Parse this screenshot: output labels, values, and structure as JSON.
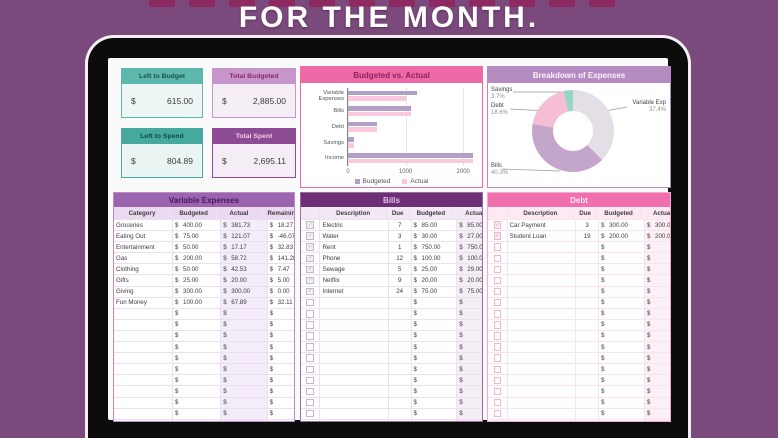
{
  "page": {
    "title": "FOR THE MONTH."
  },
  "summary_cards": [
    {
      "label": "Left to Budget",
      "currency": "$",
      "value": "615.00"
    },
    {
      "label": "Total Budgeted",
      "currency": "$",
      "value": "2,885.00"
    },
    {
      "label": "Left to Spend",
      "currency": "$",
      "value": "804.89"
    },
    {
      "label": "Total Spent",
      "currency": "$",
      "value": "2,695.11"
    }
  ],
  "chart_data": [
    {
      "type": "bar",
      "orientation": "horizontal",
      "title": "Budgeted vs. Actual",
      "categories": [
        "Variable Expenses",
        "Bills",
        "Debt",
        "Savings",
        "Income"
      ],
      "series": [
        {
          "name": "Budgeted",
          "values": [
            1200,
            1085,
            500,
            100,
            3500
          ],
          "color": "#b2a0c7"
        },
        {
          "name": "Actual",
          "values": [
            1009.11,
            1086,
            500,
            100,
            3500
          ],
          "color": "#f8c9dd"
        }
      ],
      "xticks": [
        0,
        1000,
        2000
      ],
      "xlim": [
        0,
        2170
      ],
      "legend_position": "bottom",
      "note": "Income bars are clipped at the axis maximum"
    },
    {
      "type": "pie",
      "donut": true,
      "title": "Breakdown of Expenses",
      "slices": [
        {
          "label": "Variable Exp",
          "value": 37.4,
          "pct_label": "37.4%",
          "color": "#e4dee6"
        },
        {
          "label": "Bills",
          "value": 40.3,
          "pct_label": "40.3%",
          "color": "#c5a6cb"
        },
        {
          "label": "Debt",
          "value": 18.6,
          "pct_label": "18.6%",
          "color": "#f6bed4"
        },
        {
          "label": "Savings",
          "value": 3.7,
          "pct_label": "3.7%",
          "color": "#96d6c8"
        }
      ]
    }
  ],
  "tables": {
    "variable_expenses": {
      "title": "Variable Expenses",
      "columns": [
        "Category",
        "Budgeted",
        "Actual",
        "Remaining"
      ],
      "currency": "$",
      "rows": [
        [
          "Groceries",
          "400.00",
          "381.73",
          "18.27"
        ],
        [
          "Eating Out",
          "75.00",
          "121.07",
          "-46.07"
        ],
        [
          "Entertainment",
          "50.00",
          "17.17",
          "32.83"
        ],
        [
          "Gas",
          "200.00",
          "58.72",
          "141.28"
        ],
        [
          "Clothing",
          "50.00",
          "42.53",
          "7.47"
        ],
        [
          "Gifts",
          "25.00",
          "20.00",
          "5.00"
        ],
        [
          "Giving",
          "300.00",
          "300.00",
          "0.00"
        ],
        [
          "Fun Money",
          "100.00",
          "67.89",
          "32.11"
        ]
      ],
      "empty_rows": 12
    },
    "bills": {
      "title": "Bills",
      "columns": [
        "Description",
        "Due",
        "Budgeted",
        "Actual"
      ],
      "currency": "$",
      "has_checkbox": true,
      "rows": [
        {
          "checked": true,
          "cells": [
            "Electric",
            "7",
            "85.00",
            "85.00"
          ]
        },
        {
          "checked": true,
          "cells": [
            "Water",
            "3",
            "30.00",
            "27.00"
          ]
        },
        {
          "checked": true,
          "cells": [
            "Rent",
            "1",
            "750.00",
            "750.00"
          ]
        },
        {
          "checked": true,
          "cells": [
            "Phone",
            "12",
            "100.00",
            "100.00"
          ]
        },
        {
          "checked": true,
          "cells": [
            "Sewage",
            "5",
            "25.00",
            "29.00"
          ]
        },
        {
          "checked": true,
          "cells": [
            "Netflix",
            "9",
            "20.00",
            "20.00"
          ]
        },
        {
          "checked": true,
          "cells": [
            "Internet",
            "24",
            "75.00",
            "75.00"
          ]
        }
      ],
      "empty_rows": 13
    },
    "debt": {
      "title": "Debt",
      "columns": [
        "Description",
        "Due",
        "Budgeted",
        "Actual"
      ],
      "currency": "$",
      "has_checkbox": true,
      "rows": [
        {
          "checked": true,
          "cells": [
            "Car Payment",
            "3",
            "300.00",
            "300.00"
          ]
        },
        {
          "checked": true,
          "cells": [
            "Student Loan",
            "19",
            "200.00",
            "200.00"
          ]
        }
      ],
      "empty_rows": 18
    }
  }
}
